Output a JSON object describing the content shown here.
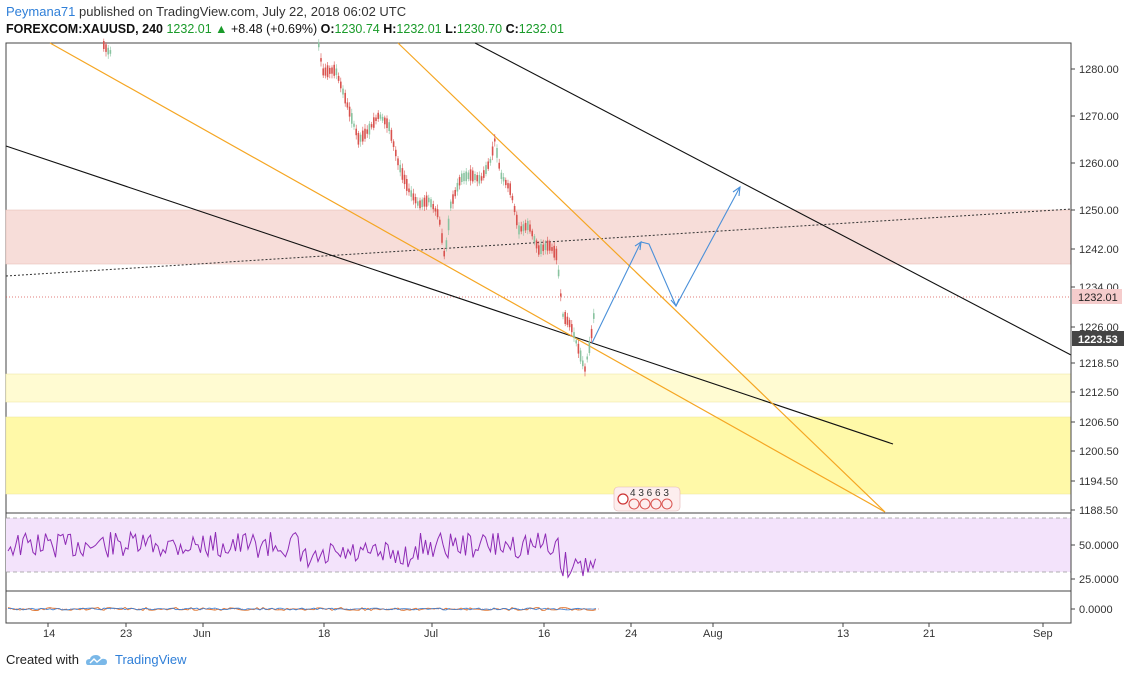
{
  "header": {
    "author": "Peymana71",
    "published": " published on TradingView.com, July 22, 2018 06:02 UTC",
    "symbol": "FOREXCOM:XAUUSD, 240",
    "last": "1232.01",
    "change_arrow": "▲",
    "change": "+8.48 (+0.69%)",
    "o_label": "O:",
    "o_value": "1230.74",
    "h_label": "H:",
    "h_value": "1232.01",
    "l_label": "L:",
    "l_value": "1230.70",
    "c_label": "C:",
    "c_value": "1232.01"
  },
  "price_axis": {
    "ticks": [
      "1280.00",
      "1270.00",
      "1260.00",
      "1250.00",
      "1242.00",
      "1234.00",
      "1226.00",
      "1218.50",
      "1212.50",
      "1206.50",
      "1200.50",
      "1194.50",
      "1188.50"
    ],
    "current_price_tag": "1232.01",
    "marker_tag": "1223.53"
  },
  "rsi_axis": {
    "ticks": [
      "50.0000",
      "25.0000"
    ]
  },
  "macd_axis": {
    "ticks": [
      "0.0000"
    ]
  },
  "time_axis": {
    "ticks": [
      "14",
      "23",
      "Jun",
      "18",
      "Jul",
      "16",
      "24",
      "Aug",
      "13",
      "21",
      "Sep"
    ]
  },
  "events_badge": {
    "text": "4 3 6 6 3"
  },
  "footer": {
    "created_with": "Created with",
    "brand": "TradingView",
    "brand_icon": "tradingview-cloud-icon"
  },
  "colors": {
    "candle_down": "#d9534f",
    "candle_up": "#89c3a0",
    "orange_line": "#f5a623",
    "black_line": "#111111",
    "arrow_blue": "#4a90d9",
    "resistance_zone": "#f7ddd9",
    "support_zone": "#fff9a8",
    "rsi_band": "#f3e3fb",
    "rsi_line": "#8e2bb5",
    "price_tag_bg": "#f5cccc",
    "marker_tag_bg": "#444444"
  }
}
